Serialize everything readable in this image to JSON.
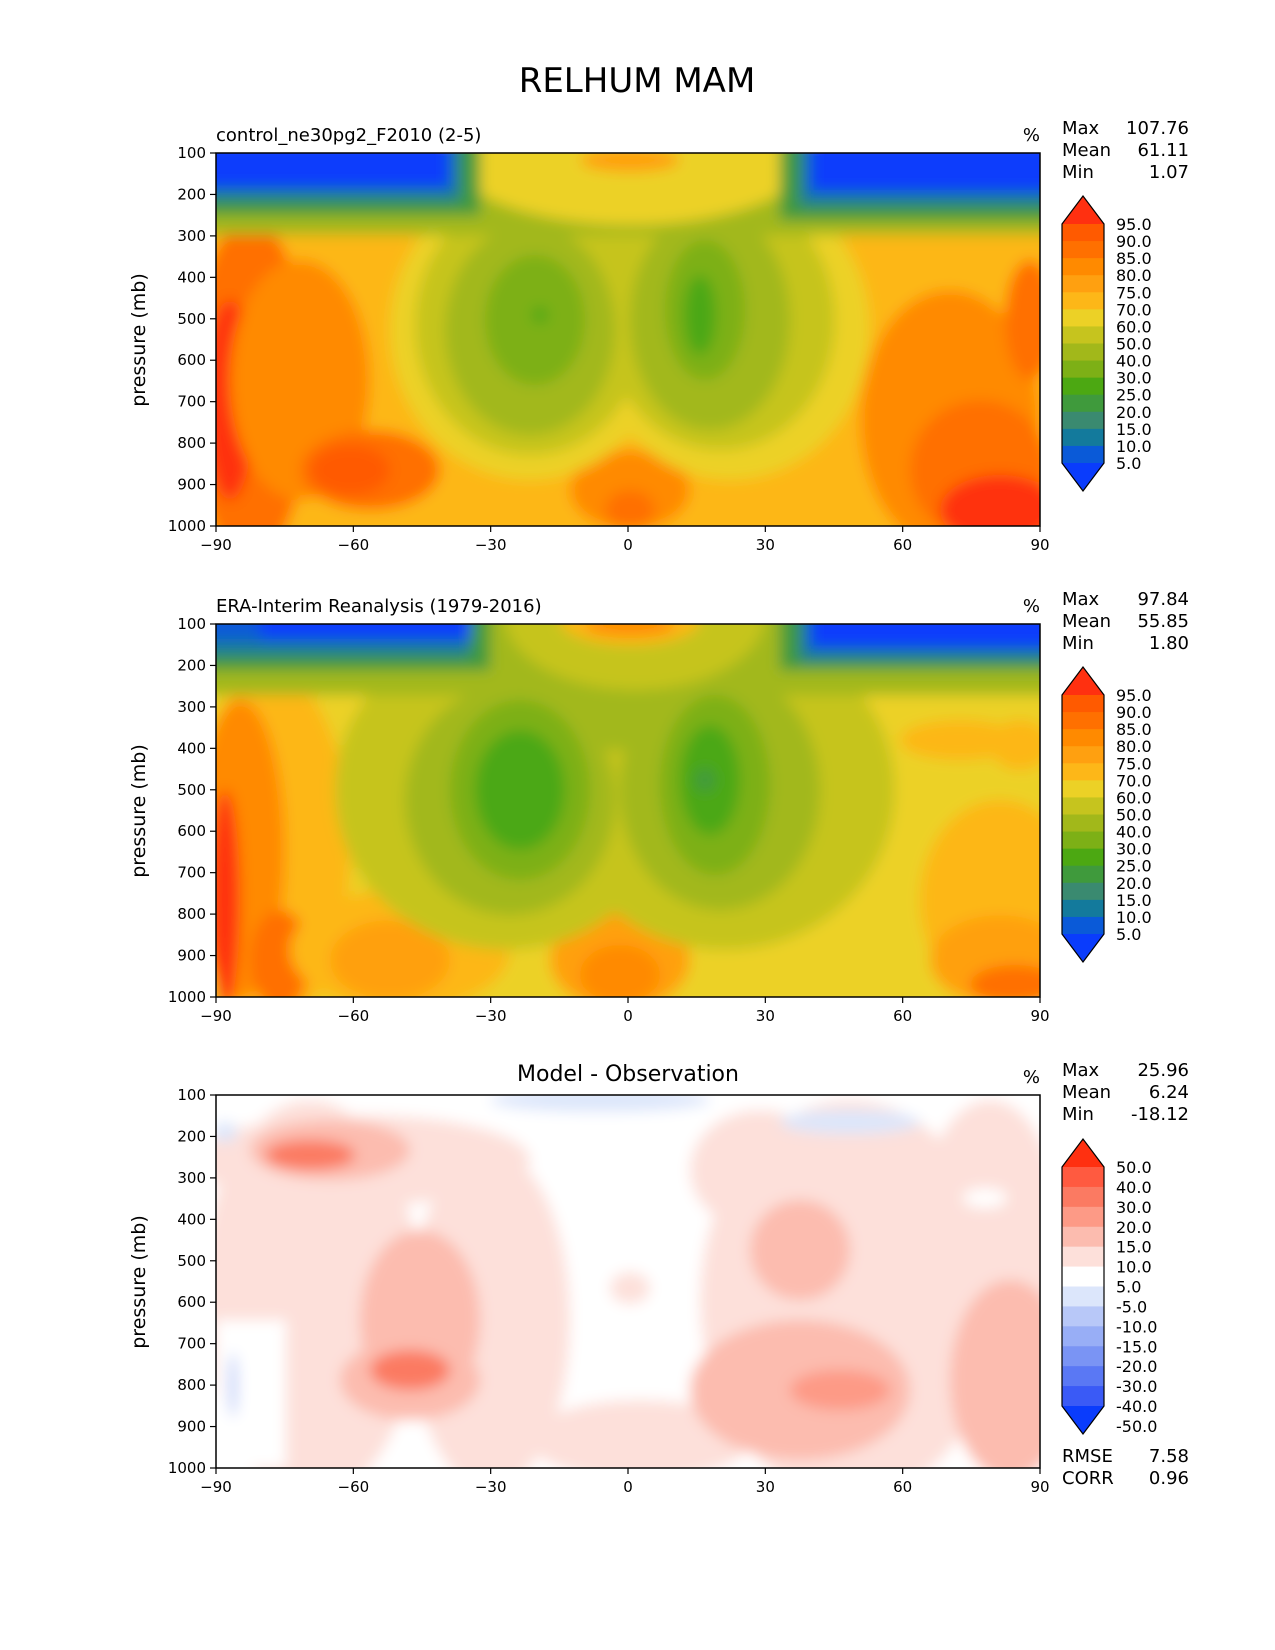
{
  "figure_title": "RELHUM MAM",
  "chart_data": [
    {
      "type": "heatmap",
      "title": "control_ne30pg2_F2010 (2-5)",
      "title_position": "left",
      "units": "%",
      "ylabel": "pressure (mb)",
      "x_ticks": [
        "−90",
        "−60",
        "−30",
        "0",
        "30",
        "60",
        "90"
      ],
      "y_ticks": [
        "100",
        "200",
        "300",
        "400",
        "500",
        "600",
        "700",
        "800",
        "900",
        "1000"
      ],
      "xlim": [
        -90,
        90
      ],
      "ylim": [
        1000,
        100
      ],
      "stats": [
        {
          "label": "Max",
          "value": "107.76"
        },
        {
          "label": "Mean",
          "value": "61.11"
        },
        {
          "label": "Min",
          "value": "1.07"
        }
      ],
      "colorbar_levels": [
        "95.0",
        "90.0",
        "85.0",
        "80.0",
        "75.0",
        "70.0",
        "60.0",
        "50.0",
        "40.0",
        "30.0",
        "25.0",
        "20.0",
        "15.0",
        "10.0",
        "5.0"
      ],
      "colorbar_colors": [
        "#ff3010",
        "#ff5a00",
        "#ff7000",
        "#ff8a00",
        "#ffa010",
        "#fdb718",
        "#ecd126",
        "#c6c41e",
        "#a2b81a",
        "#7db016",
        "#4ca812",
        "#3f9a3c",
        "#3a8a70",
        "#137a9c",
        "#0a5ad8",
        "#0a3cfc"
      ],
      "masked_region": "lower-left"
    },
    {
      "type": "heatmap",
      "title": "ERA-Interim Reanalysis (1979-2016)",
      "title_position": "left",
      "units": "%",
      "ylabel": "pressure (mb)",
      "x_ticks": [
        "−90",
        "−60",
        "−30",
        "0",
        "30",
        "60",
        "90"
      ],
      "y_ticks": [
        "100",
        "200",
        "300",
        "400",
        "500",
        "600",
        "700",
        "800",
        "900",
        "1000"
      ],
      "xlim": [
        -90,
        90
      ],
      "ylim": [
        1000,
        100
      ],
      "stats": [
        {
          "label": "Max",
          "value": "97.84"
        },
        {
          "label": "Mean",
          "value": "55.85"
        },
        {
          "label": "Min",
          "value": "1.80"
        }
      ],
      "colorbar_levels": [
        "95.0",
        "90.0",
        "85.0",
        "80.0",
        "75.0",
        "70.0",
        "60.0",
        "50.0",
        "40.0",
        "30.0",
        "25.0",
        "20.0",
        "15.0",
        "10.0",
        "5.0"
      ],
      "colorbar_colors": [
        "#ff3010",
        "#ff5a00",
        "#ff7000",
        "#ff8a00",
        "#ffa010",
        "#fdb718",
        "#ecd126",
        "#c6c41e",
        "#a2b81a",
        "#7db016",
        "#4ca812",
        "#3f9a3c",
        "#3a8a70",
        "#137a9c",
        "#0a5ad8",
        "#0a3cfc"
      ]
    },
    {
      "type": "heatmap",
      "title": "Model - Observation",
      "title_position": "center",
      "units": "%",
      "ylabel": "pressure (mb)",
      "x_ticks": [
        "−90",
        "−60",
        "−30",
        "0",
        "30",
        "60",
        "90"
      ],
      "y_ticks": [
        "100",
        "200",
        "300",
        "400",
        "500",
        "600",
        "700",
        "800",
        "900",
        "1000"
      ],
      "xlim": [
        -90,
        90
      ],
      "ylim": [
        1000,
        100
      ],
      "stats": [
        {
          "label": "Max",
          "value": "25.96"
        },
        {
          "label": "Mean",
          "value": "6.24"
        },
        {
          "label": "Min",
          "value": "-18.12"
        }
      ],
      "extra_stats": [
        {
          "label": "RMSE",
          "value": "7.58"
        },
        {
          "label": "CORR",
          "value": "0.96"
        }
      ],
      "colorbar_levels": [
        "50.0",
        "40.0",
        "30.0",
        "20.0",
        "15.0",
        "10.0",
        "5.0",
        "-5.0",
        "-10.0",
        "-15.0",
        "-20.0",
        "-30.0",
        "-40.0",
        "-50.0"
      ],
      "colorbar_colors": [
        "#ff3010",
        "#ff5a40",
        "#fb7a62",
        "#fd9a86",
        "#fcbcaf",
        "#fde0da",
        "#ffffff",
        "#dce6fb",
        "#b8c8f8",
        "#98aef6",
        "#7a94f4",
        "#5a78f4",
        "#3a5af6",
        "#0a3cfc"
      ]
    }
  ]
}
